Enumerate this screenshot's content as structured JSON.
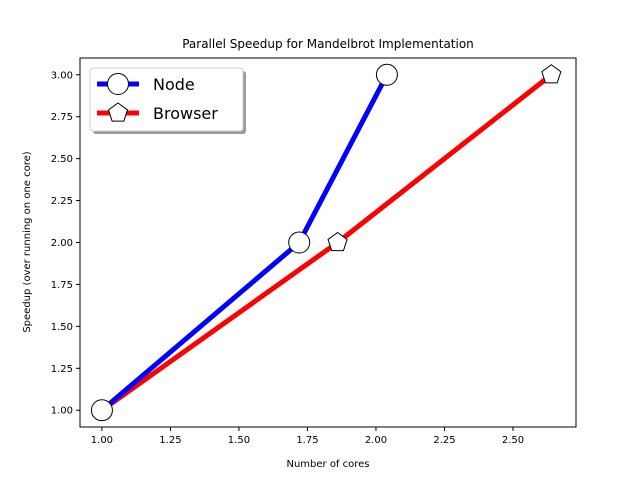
{
  "chart_data": {
    "type": "line",
    "title": "Parallel Speedup for Mandelbrot Implementation",
    "xlabel": "Number of cores",
    "ylabel": "Speedup (over running on one core)",
    "xlim": [
      0.92,
      2.73
    ],
    "ylim": [
      0.9,
      3.1
    ],
    "xticks": [
      "1.00",
      "1.25",
      "1.50",
      "1.75",
      "2.00",
      "2.25",
      "2.50"
    ],
    "yticks": [
      "1.00",
      "1.25",
      "1.50",
      "1.75",
      "2.00",
      "2.25",
      "2.50",
      "2.75",
      "3.00"
    ],
    "grid": false,
    "legend_position": "top-left",
    "series": [
      {
        "name": "Node",
        "color": "#0000ff",
        "marker": "circle",
        "points": [
          {
            "x": 1.0,
            "y": 1.0
          },
          {
            "x": 1.72,
            "y": 2.0
          },
          {
            "x": 2.04,
            "y": 3.0
          }
        ]
      },
      {
        "name": "Browser",
        "color": "#ff0000",
        "marker": "pentagon",
        "points": [
          {
            "x": 1.0,
            "y": 1.0
          },
          {
            "x": 1.86,
            "y": 2.0
          },
          {
            "x": 2.64,
            "y": 3.0
          }
        ]
      }
    ]
  }
}
